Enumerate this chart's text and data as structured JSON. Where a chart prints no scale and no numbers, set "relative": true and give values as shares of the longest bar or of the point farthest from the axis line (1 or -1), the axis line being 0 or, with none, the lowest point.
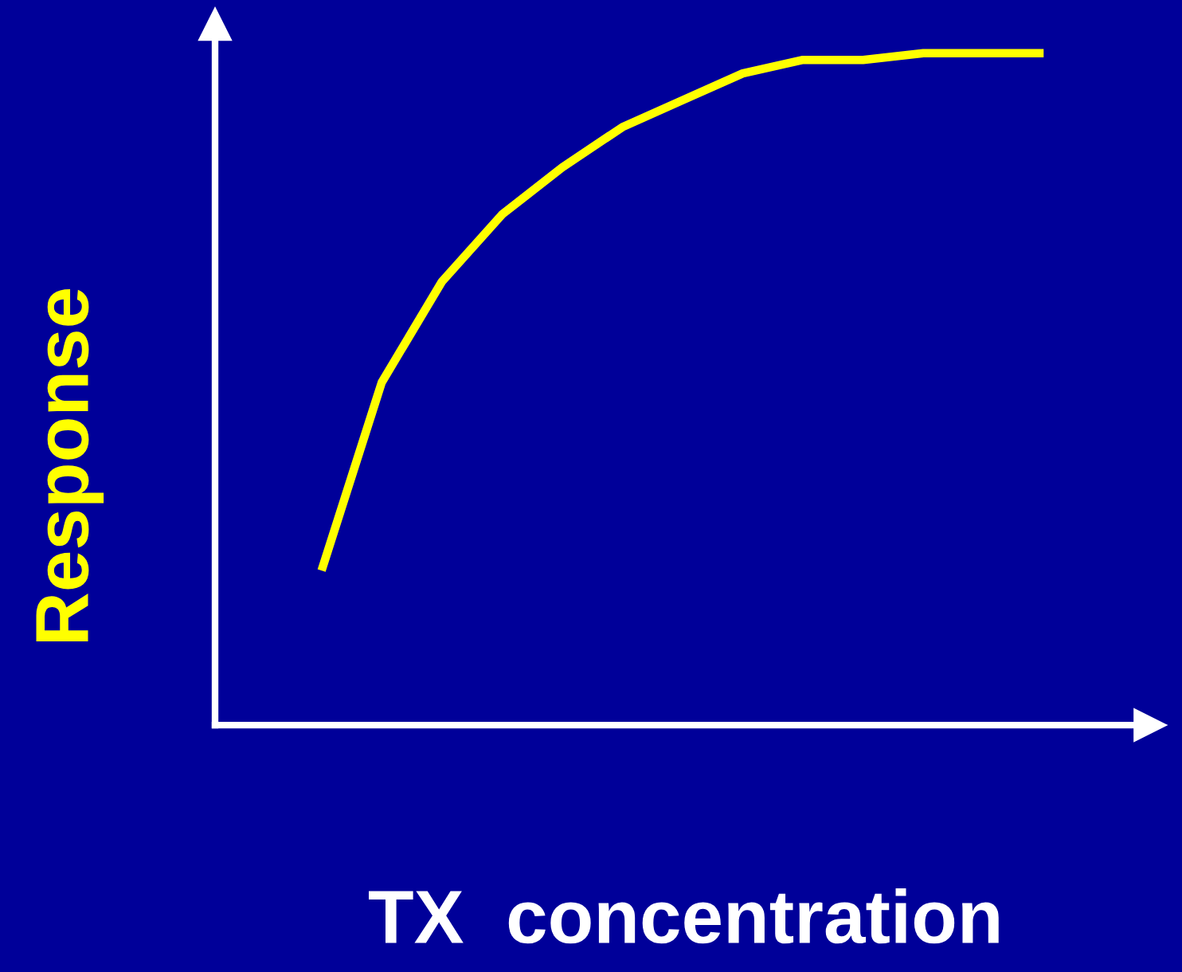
{
  "chart_data": {
    "type": "line",
    "relative": true,
    "tick_labels": false,
    "xlabel": "TX  concentration",
    "ylabel": "Response",
    "categories": [
      null,
      null,
      null,
      null,
      null,
      null,
      null,
      null,
      null,
      null,
      null,
      null,
      null
    ],
    "series": [
      {
        "color": "#ffff00",
        "values": [
          0.23,
          0.51,
          0.66,
          0.76,
          0.83,
          0.89,
          0.93,
          0.97,
          0.99,
          0.99,
          1.0,
          1.0,
          1.0
        ]
      }
    ]
  }
}
